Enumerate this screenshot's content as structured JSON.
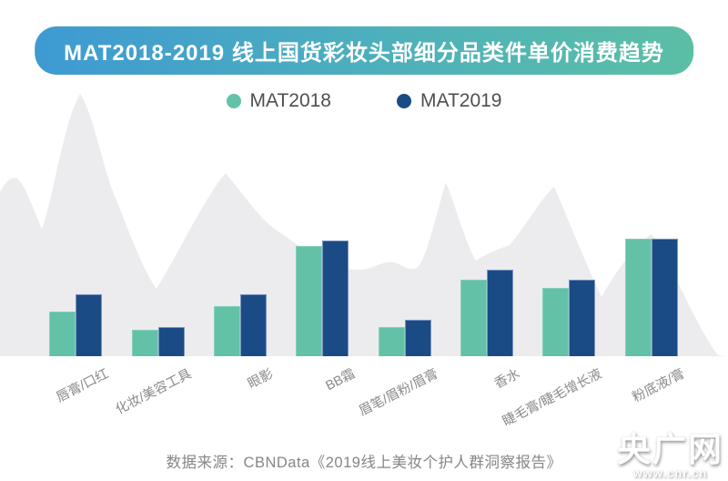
{
  "header": {
    "title": "MAT2018-2019 线上国货彩妆头部细分品类件单价消费趋势"
  },
  "legend": {
    "items": [
      {
        "label": "MAT2018",
        "color": "#63c1a8"
      },
      {
        "label": "MAT2019",
        "color": "#1b4b85"
      }
    ]
  },
  "chart_data": {
    "type": "bar",
    "title": "MAT2018-2019 线上国货彩妆头部细分品类件单价消费趋势",
    "categories": [
      "唇膏/口红",
      "化妆/美容工具",
      "眼影",
      "BB霜",
      "眉笔/眉粉/眉膏",
      "香水",
      "睫毛膏/睫毛增长液",
      "粉底液/膏"
    ],
    "series": [
      {
        "name": "MAT2018",
        "color": "#63c1a8",
        "border": "#86d0ba",
        "values": [
          38,
          22,
          42,
          93,
          25,
          65,
          58,
          99
        ]
      },
      {
        "name": "MAT2019",
        "color": "#1b4b85",
        "border": "#7b96c4",
        "values": [
          52,
          25,
          52,
          98,
          31,
          73,
          65,
          99
        ]
      }
    ],
    "value_axis": "none shown in image; values are relative bar heights on a 0-100 scale",
    "xlabel": "",
    "ylabel": "",
    "grid": false,
    "legend_position": "top-center"
  },
  "footer": {
    "source": "数据来源：CBNData《2019线上美妆个护人群洞察报告》"
  },
  "watermark": {
    "name": "央广网",
    "url_text": "www.cnr.cn"
  },
  "colors": {
    "title_gradient_left": "#3e9ad2",
    "title_gradient_right": "#5bbfa5",
    "mat2018_teal": "#63c1a8",
    "mat2019_blue": "#1b4b85",
    "mountain_gray": "#ececee",
    "label_gray": "#8a8a8a",
    "background": "#ffffff"
  }
}
